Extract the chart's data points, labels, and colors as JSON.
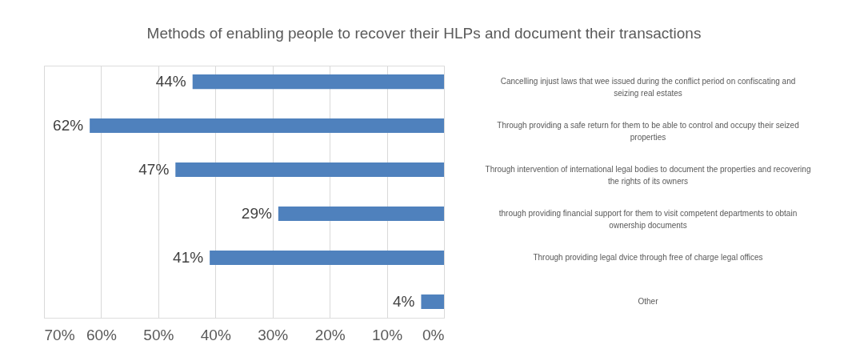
{
  "chart_data": {
    "type": "bar",
    "orientation": "horizontal",
    "title": "Methods of enabling people to recover their HLPs and document their transactions",
    "categories": [
      "Cancelling injust laws that wee issued during the conflict period on confiscating and seizing real estates",
      "Through providing a safe return for them to be able to control and occupy their seized properties",
      "Through intervention of international legal bodies to document the properties and recovering the rights of its owners",
      "through providing financial support for them to visit competent departments to obtain ownership documents",
      "Through providing legal dvice through free of charge legal offices",
      "Other"
    ],
    "values": [
      44,
      62,
      47,
      29,
      41,
      4
    ],
    "value_labels": [
      "44%",
      "62%",
      "47%",
      "29%",
      "41%",
      "4%"
    ],
    "color": "#4f81bd",
    "xlim": [
      70,
      0
    ],
    "xticks": [
      {
        "value": 70,
        "label": "70%"
      },
      {
        "value": 60,
        "label": "60%"
      },
      {
        "value": 50,
        "label": "50%"
      },
      {
        "value": 40,
        "label": "40%"
      },
      {
        "value": 30,
        "label": "30%"
      },
      {
        "value": 20,
        "label": "20%"
      },
      {
        "value": 10,
        "label": "10%"
      },
      {
        "value": 0,
        "label": "0%"
      }
    ],
    "grid": "x"
  }
}
